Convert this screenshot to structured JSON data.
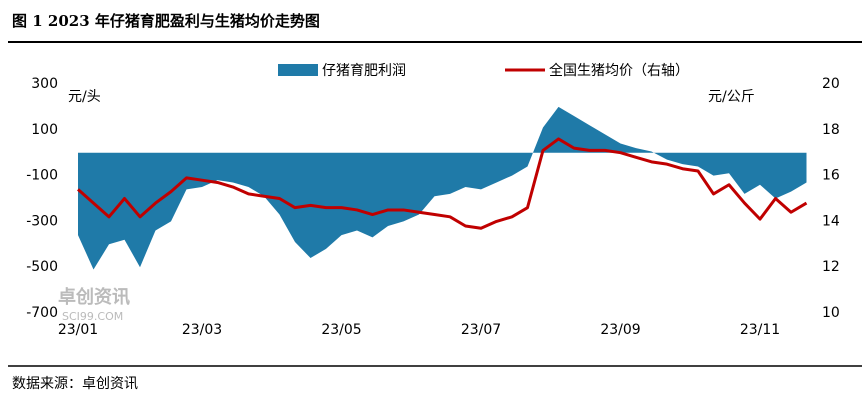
{
  "chart_data": {
    "type": "combo",
    "title": "图 1 2023 年仔猪育肥盈利与生猪均价走势图",
    "source": "数据来源：卓创资讯",
    "watermark": "卓创资讯",
    "watermark_url": "SCI99.COM",
    "y_label": "元/头",
    "y2_label": "元/公斤",
    "categories": [
      "23/01",
      null,
      null,
      null,
      null,
      null,
      null,
      null,
      "23/03",
      null,
      null,
      null,
      null,
      null,
      null,
      null,
      null,
      "23/05",
      null,
      null,
      null,
      null,
      null,
      null,
      null,
      null,
      "23/07",
      null,
      null,
      null,
      null,
      null,
      null,
      null,
      null,
      "23/09",
      null,
      null,
      null,
      null,
      null,
      null,
      null,
      null,
      "23/11",
      null,
      null,
      null
    ],
    "ylim": [
      -700,
      300
    ],
    "yticks": [
      -700,
      -500,
      -300,
      -100,
      100,
      300
    ],
    "y2lim": [
      10,
      20
    ],
    "y2ticks": [
      10,
      12,
      14,
      16,
      18,
      20
    ],
    "legend": "top",
    "series": [
      {
        "name": "仔猪育肥利润",
        "type": "area",
        "color": "#1f7aa8",
        "values": [
          -360,
          -510,
          -400,
          -380,
          -500,
          -340,
          -300,
          -160,
          -150,
          -120,
          -130,
          -150,
          -190,
          -270,
          -390,
          -460,
          -420,
          -360,
          -340,
          -370,
          -320,
          -300,
          -270,
          -190,
          -180,
          -150,
          -160,
          -130,
          -100,
          -60,
          110,
          200,
          160,
          120,
          80,
          40,
          20,
          5,
          -30,
          -50,
          -60,
          -100,
          -90,
          -180,
          -140,
          -200,
          -170,
          -130
        ]
      },
      {
        "name": "全国生猪均价（右轴）",
        "type": "line",
        "axis": "y2",
        "color": "#c00000",
        "values": [
          15.4,
          14.8,
          14.2,
          15.0,
          14.2,
          14.8,
          15.3,
          15.9,
          15.8,
          15.7,
          15.5,
          15.2,
          15.1,
          15.0,
          14.6,
          14.7,
          14.6,
          14.6,
          14.5,
          14.3,
          14.5,
          14.5,
          14.4,
          14.3,
          14.2,
          13.8,
          13.7,
          14.0,
          14.2,
          14.6,
          17.1,
          17.6,
          17.2,
          17.1,
          17.1,
          17.0,
          16.8,
          16.6,
          16.5,
          16.3,
          16.2,
          15.2,
          15.6,
          14.8,
          14.1,
          15.0,
          14.4,
          14.8
        ]
      }
    ]
  }
}
